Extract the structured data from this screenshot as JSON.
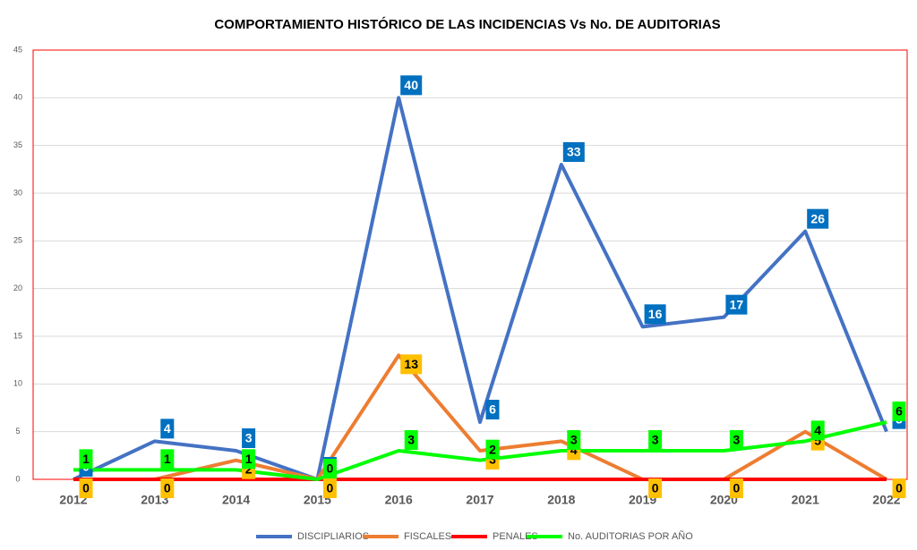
{
  "chart_data": {
    "type": "line",
    "title": "COMPORTAMIENTO HISTÓRICO DE LAS INCIDENCIAS Vs No. DE AUDITORIAS",
    "categories": [
      "2012",
      "2013",
      "2014",
      "2015",
      "2016",
      "2017",
      "2018",
      "2019",
      "2020",
      "2021",
      "2022"
    ],
    "series": [
      {
        "name": "DISCIPLIARIOS",
        "color": "#4472c4",
        "label_color": "#0070c0",
        "values": [
          0,
          4,
          3,
          0,
          40,
          6,
          33,
          16,
          17,
          26,
          5
        ]
      },
      {
        "name": "FISCALES",
        "color": "#ed7d31",
        "label_color": "#ffc000",
        "values": [
          0,
          0,
          2,
          0,
          13,
          3,
          4,
          0,
          0,
          5,
          0
        ]
      },
      {
        "name": "PENALES",
        "color": "#ff0000",
        "values": [
          0,
          0,
          0,
          0,
          0,
          0,
          0,
          0,
          0,
          0,
          0
        ]
      },
      {
        "name": "No. AUDITORIAS POR AÑO",
        "color": "#00ff00",
        "label_color": "#00ff00",
        "values": [
          1,
          1,
          1,
          0,
          3,
          2,
          3,
          3,
          3,
          4,
          6
        ]
      }
    ],
    "ylim": [
      0,
      45
    ],
    "yticks": [
      0,
      5,
      10,
      15,
      20,
      25,
      30,
      35,
      40,
      45
    ],
    "grid": true,
    "legend": "bottom"
  }
}
